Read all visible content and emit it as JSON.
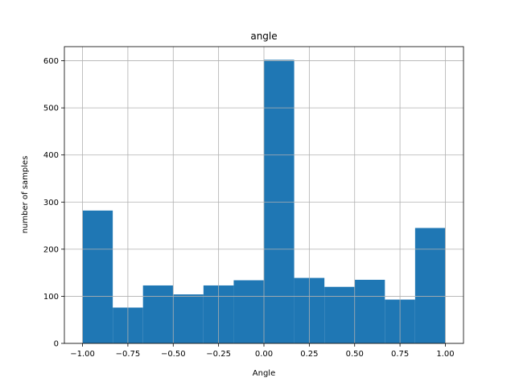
{
  "chart_data": {
    "type": "bar",
    "title": "angle",
    "xlabel": "Angle",
    "ylabel": "number of samples",
    "xlim": [
      -1.1,
      1.1
    ],
    "ylim": [
      0,
      630
    ],
    "grid": true,
    "bin_edges": [
      -1.0,
      -0.8333,
      -0.6667,
      -0.5,
      -0.3333,
      -0.1667,
      0.0,
      0.1667,
      0.3333,
      0.5,
      0.6667,
      0.8333,
      1.0
    ],
    "values": [
      282,
      76,
      123,
      104,
      123,
      134,
      602,
      139,
      120,
      135,
      93,
      245
    ],
    "bar_color": "#1f77b4",
    "xticks": [
      -1.0,
      -0.75,
      -0.5,
      -0.25,
      0.0,
      0.25,
      0.5,
      0.75,
      1.0
    ],
    "xtick_labels": [
      "−1.00",
      "−0.75",
      "−0.50",
      "−0.25",
      "0.00",
      "0.25",
      "0.50",
      "0.75",
      "1.00"
    ],
    "yticks": [
      0,
      100,
      200,
      300,
      400,
      500,
      600
    ],
    "ytick_labels": [
      "0",
      "100",
      "200",
      "300",
      "400",
      "500",
      "600"
    ]
  }
}
